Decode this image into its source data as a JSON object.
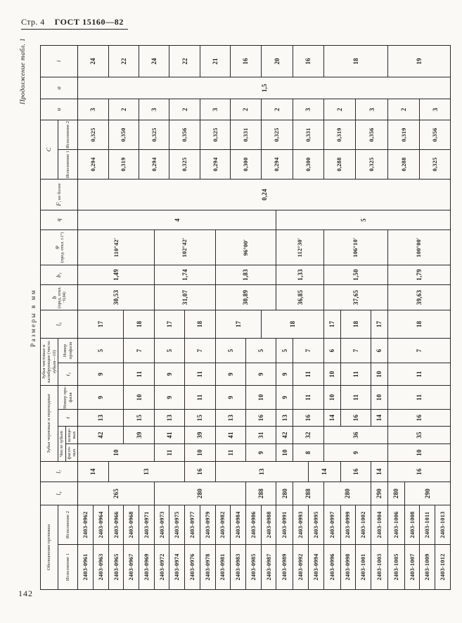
{
  "page": {
    "header_left": "Стр. 4",
    "header_doc": "ГОСТ 15160—82",
    "continuation_note": "Продолжение табл. 1",
    "units_note": "Размеры в мм",
    "page_number": "142"
  },
  "table": {
    "groups": {
      "designation": "Обозначение протяжки",
      "rough_teeth": "Зубья черновые и переходные",
      "teeth_count": "Число зубьев",
      "finish_teeth": "Зубья чистовые и калибрующие (число зубьев—10)",
      "c_group": "C"
    },
    "headers": {
      "isp1": "Исполнение 1",
      "isp2": "Исполнение 2",
      "l4": "l₄",
      "l7": "l₇",
      "fas": "фасоч­ных",
      "shl": "шлице­вых",
      "t": "t",
      "nprof": "Номер про­филя",
      "t1": "t₁",
      "nprof2": "Номер профиля",
      "l6": "l₆",
      "b_sym": "b",
      "b_tol": "(пред. откл. −0,04)",
      "b1": "b₁",
      "phi_sym": "φ",
      "phi_tol": "(пред. откл. ±1°)",
      "q": "q",
      "F_sym": "F",
      "F_rest": ", не более",
      "c1": "Исполне­ние 1",
      "c2": "Исполне­ние 2",
      "u": "и",
      "a": "a",
      "i": "i"
    },
    "column_order": [
      "isp1",
      "isp2",
      "l4",
      "l7",
      "fas",
      "shl",
      "t",
      "nch",
      "t1",
      "nchist",
      "l6",
      "b",
      "b1",
      "phi",
      "q",
      "F",
      "c1",
      "c2",
      "u",
      "a",
      "i"
    ],
    "designations": {
      "isp1": [
        "2403-0961",
        "2403-0963",
        "2403-0965",
        "2403-0967",
        "2403-0969",
        "2403-0972",
        "2403-0974",
        "2403-0976",
        "2403-0978",
        "2403-0981",
        "2403-0983",
        "2403-0985",
        "2403-0987",
        "2403-0989",
        "2403-0992",
        "2403-0994",
        "2403-0996",
        "2403-0998",
        "2403-1001",
        "2403-1003",
        "2403-1005",
        "2403-1007",
        "2403-1009",
        "2403-1012"
      ],
      "isp2": [
        "2403-0962",
        "2403-0964",
        "2403-0966",
        "2403-0968",
        "2403-0971",
        "2403-0973",
        "2403-0975",
        "2403-0977",
        "2403-0979",
        "2403-0982",
        "2403-0984",
        "2403-0986",
        "2403-0988",
        "2403-0991",
        "2403-0993",
        "2403-0995",
        "2403-0997",
        "2403-0999",
        "2403-1002",
        "2403-1004",
        "2403-1006",
        "2403-1008",
        "2403-1011",
        "2403-1013"
      ]
    },
    "segments": {
      "l4": [
        [
          "265",
          5
        ],
        [
          "280",
          6
        ],
        [
          "288",
          2
        ],
        [
          "280",
          1
        ],
        [
          "288",
          2
        ],
        [
          "280",
          3
        ],
        [
          "290",
          1
        ],
        [
          "280",
          1
        ],
        [
          "290",
          3
        ]
      ],
      "l7": [
        [
          "14",
          2
        ],
        [
          "13",
          5
        ],
        [
          "16",
          2
        ],
        [
          "13",
          6
        ],
        [
          "14",
          2
        ],
        [
          "16",
          2
        ],
        [
          "14",
          1
        ],
        [
          "16",
          4
        ]
      ],
      "fas": [
        [
          "10",
          5
        ],
        [
          "11",
          2
        ],
        [
          "10",
          2
        ],
        [
          "11",
          2
        ],
        [
          "9",
          2
        ],
        [
          "10",
          1
        ],
        [
          "8",
          2
        ],
        [
          "9",
          4
        ],
        [
          "10",
          4
        ]
      ],
      "shl": [
        [
          "42",
          3
        ],
        [
          "39",
          2
        ],
        [
          "41",
          2
        ],
        [
          "39",
          2
        ],
        [
          "41",
          2
        ],
        [
          "31",
          2
        ],
        [
          "42",
          1
        ],
        [
          "32",
          2
        ],
        [
          "36",
          4
        ],
        [
          "35",
          4
        ]
      ],
      "t": [
        [
          "13",
          3
        ],
        [
          "15",
          2
        ],
        [
          "13",
          2
        ],
        [
          "15",
          2
        ],
        [
          "13",
          2
        ],
        [
          "16",
          2
        ],
        [
          "13",
          1
        ],
        [
          "16",
          2
        ],
        [
          "14",
          1
        ],
        [
          "16",
          2
        ],
        [
          "14",
          1
        ],
        [
          "16",
          4
        ]
      ],
      "nch": [
        [
          "9",
          3
        ],
        [
          "10",
          2
        ],
        [
          "9",
          2
        ],
        [
          "11",
          2
        ],
        [
          "9",
          2
        ],
        [
          "10",
          2
        ],
        [
          "9",
          1
        ],
        [
          "11",
          2
        ],
        [
          "10",
          1
        ],
        [
          "11",
          2
        ],
        [
          "10",
          1
        ],
        [
          "11",
          4
        ]
      ],
      "t1": [
        [
          "9",
          3
        ],
        [
          "11",
          2
        ],
        [
          "9",
          2
        ],
        [
          "11",
          2
        ],
        [
          "9",
          2
        ],
        [
          "9",
          2
        ],
        [
          "9",
          1
        ],
        [
          "11",
          2
        ],
        [
          "10",
          1
        ],
        [
          "11",
          2
        ],
        [
          "10",
          1
        ],
        [
          "11",
          4
        ]
      ],
      "nchist": [
        [
          "5",
          3
        ],
        [
          "7",
          2
        ],
        [
          "5",
          2
        ],
        [
          "7",
          2
        ],
        [
          "5",
          2
        ],
        [
          "5",
          2
        ],
        [
          "5",
          1
        ],
        [
          "7",
          2
        ],
        [
          "6",
          1
        ],
        [
          "7",
          2
        ],
        [
          "6",
          1
        ],
        [
          "7",
          4
        ]
      ],
      "l6": [
        [
          "17",
          3
        ],
        [
          "18",
          2
        ],
        [
          "17",
          2
        ],
        [
          "18",
          2
        ],
        [
          "17",
          3
        ],
        [
          "18",
          4
        ],
        [
          "17",
          1
        ],
        [
          "18",
          2
        ],
        [
          "17",
          1
        ],
        [
          "18",
          4
        ]
      ],
      "b": [
        [
          "30,53",
          5
        ],
        [
          "31,07",
          4
        ],
        [
          "30,89",
          4
        ],
        [
          "36,85",
          3
        ],
        [
          "37,65",
          4
        ],
        [
          "39,63",
          4
        ]
      ],
      "b1": [
        [
          "1,49",
          5
        ],
        [
          "1,74",
          4
        ],
        [
          "1,83",
          4
        ],
        [
          "1,33",
          3
        ],
        [
          "1,50",
          4
        ],
        [
          "1,79",
          4
        ]
      ],
      "phi": [
        [
          "110°42′",
          5
        ],
        [
          "102°42′",
          4
        ],
        [
          "96°00′",
          4
        ],
        [
          "112°30′",
          3
        ],
        [
          "106°10′",
          4
        ],
        [
          "100°00′",
          4
        ]
      ],
      "q": [
        [
          "4",
          13
        ],
        [
          "5",
          11
        ]
      ],
      "F": [
        [
          "0,24",
          24
        ]
      ],
      "c1": [
        [
          "0,294",
          2
        ],
        [
          "0,319",
          2
        ],
        [
          "0,294",
          2
        ],
        [
          "0,325",
          2
        ],
        [
          "0,294",
          2
        ],
        [
          "0,300",
          2
        ],
        [
          "0,294",
          2
        ],
        [
          "0,300",
          2
        ],
        [
          "0,288",
          2
        ],
        [
          "0,325",
          2
        ],
        [
          "0,288",
          2
        ],
        [
          "0,325",
          2
        ]
      ],
      "c2": [
        [
          "0,325",
          2
        ],
        [
          "0,350",
          2
        ],
        [
          "0,325",
          2
        ],
        [
          "0,356",
          2
        ],
        [
          "0,325",
          2
        ],
        [
          "0,331",
          2
        ],
        [
          "0,325",
          2
        ],
        [
          "0,331",
          2
        ],
        [
          "0,319",
          2
        ],
        [
          "0,356",
          2
        ],
        [
          "0,319",
          2
        ],
        [
          "0,356",
          2
        ]
      ],
      "u": [
        [
          "3",
          2
        ],
        [
          "2",
          2
        ],
        [
          "3",
          2
        ],
        [
          "2",
          2
        ],
        [
          "3",
          2
        ],
        [
          "2",
          2
        ],
        [
          "2",
          2
        ],
        [
          "3",
          2
        ],
        [
          "2",
          2
        ],
        [
          "3",
          2
        ],
        [
          "2",
          2
        ],
        [
          "3",
          2
        ]
      ],
      "a": [
        [
          "1,5",
          24
        ]
      ],
      "i": [
        [
          "24",
          2
        ],
        [
          "22",
          2
        ],
        [
          "24",
          2
        ],
        [
          "22",
          2
        ],
        [
          "21",
          2
        ],
        [
          "16",
          2
        ],
        [
          "20",
          2
        ],
        [
          "16",
          2
        ],
        [
          "18",
          4
        ],
        [
          "19",
          4
        ]
      ]
    }
  }
}
